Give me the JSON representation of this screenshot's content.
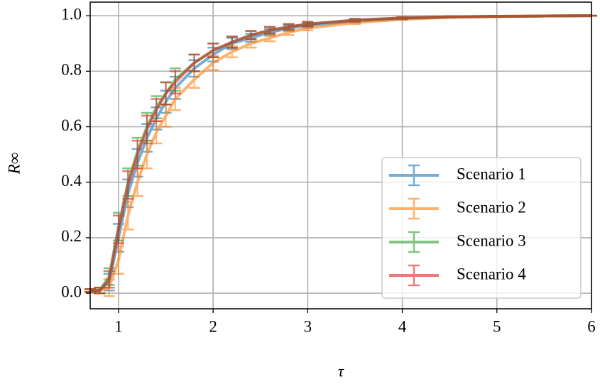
{
  "chart_data": {
    "type": "errorbar-line",
    "xlabel": "τ",
    "ylabel": "R∞",
    "x": [
      0.7,
      0.8,
      0.9,
      1.0,
      1.1,
      1.2,
      1.3,
      1.4,
      1.5,
      1.6,
      1.8,
      2.0,
      2.2,
      2.4,
      2.6,
      2.8,
      3.0,
      3.5,
      4.0,
      4.5,
      5.0,
      5.5,
      6.0
    ],
    "series": [
      {
        "name": "Scenario 1",
        "color": "#1f77b4",
        "values": [
          0.01,
          0.01,
          0.04,
          0.2,
          0.36,
          0.47,
          0.56,
          0.63,
          0.69,
          0.74,
          0.81,
          0.86,
          0.9,
          0.92,
          0.94,
          0.955,
          0.965,
          0.98,
          0.99,
          0.995,
          0.997,
          0.999,
          1.0
        ],
        "errors": [
          0.005,
          0.01,
          0.03,
          0.05,
          0.05,
          0.05,
          0.05,
          0.04,
          0.04,
          0.04,
          0.03,
          0.025,
          0.02,
          0.015,
          0.012,
          0.01,
          0.008,
          0.005,
          0.003,
          0.002,
          0.001,
          0.001,
          0.0
        ]
      },
      {
        "name": "Scenario 2",
        "color": "#ff7f0e",
        "values": [
          0.01,
          0.01,
          0.02,
          0.12,
          0.28,
          0.4,
          0.5,
          0.58,
          0.64,
          0.7,
          0.77,
          0.83,
          0.87,
          0.9,
          0.92,
          0.94,
          0.955,
          0.975,
          0.987,
          0.994,
          0.997,
          0.999,
          1.0
        ],
        "errors": [
          0.005,
          0.01,
          0.03,
          0.05,
          0.05,
          0.05,
          0.05,
          0.04,
          0.04,
          0.04,
          0.03,
          0.025,
          0.02,
          0.015,
          0.012,
          0.01,
          0.008,
          0.005,
          0.003,
          0.002,
          0.001,
          0.001,
          0.0
        ]
      },
      {
        "name": "Scenario 3",
        "color": "#2ca02c",
        "values": [
          0.01,
          0.01,
          0.06,
          0.24,
          0.4,
          0.51,
          0.6,
          0.67,
          0.72,
          0.77,
          0.83,
          0.875,
          0.905,
          0.93,
          0.947,
          0.96,
          0.97,
          0.984,
          0.992,
          0.996,
          0.998,
          0.999,
          1.0
        ],
        "errors": [
          0.005,
          0.01,
          0.03,
          0.05,
          0.05,
          0.05,
          0.05,
          0.04,
          0.04,
          0.04,
          0.03,
          0.025,
          0.02,
          0.015,
          0.012,
          0.01,
          0.008,
          0.005,
          0.003,
          0.002,
          0.001,
          0.001,
          0.0
        ]
      },
      {
        "name": "Scenario 4",
        "color": "#d62728",
        "values": [
          0.01,
          0.01,
          0.05,
          0.23,
          0.39,
          0.5,
          0.59,
          0.66,
          0.72,
          0.76,
          0.83,
          0.875,
          0.905,
          0.93,
          0.948,
          0.96,
          0.97,
          0.984,
          0.992,
          0.996,
          0.998,
          0.999,
          1.0
        ],
        "errors": [
          0.005,
          0.01,
          0.03,
          0.05,
          0.05,
          0.05,
          0.05,
          0.04,
          0.04,
          0.04,
          0.03,
          0.025,
          0.02,
          0.015,
          0.012,
          0.01,
          0.008,
          0.005,
          0.003,
          0.002,
          0.001,
          0.001,
          0.0
        ]
      }
    ],
    "xlim": [
      0.7,
      6
    ],
    "ylim": [
      -0.056,
      1.049
    ],
    "xticks": [
      1,
      2,
      3,
      4,
      5,
      6
    ],
    "yticks": [
      {
        "value": 0,
        "label": "0.0"
      },
      0.2,
      0.4,
      0.6,
      0.8,
      {
        "value": 1,
        "label": "1.0"
      }
    ],
    "grid": true,
    "legend": "lower right"
  }
}
